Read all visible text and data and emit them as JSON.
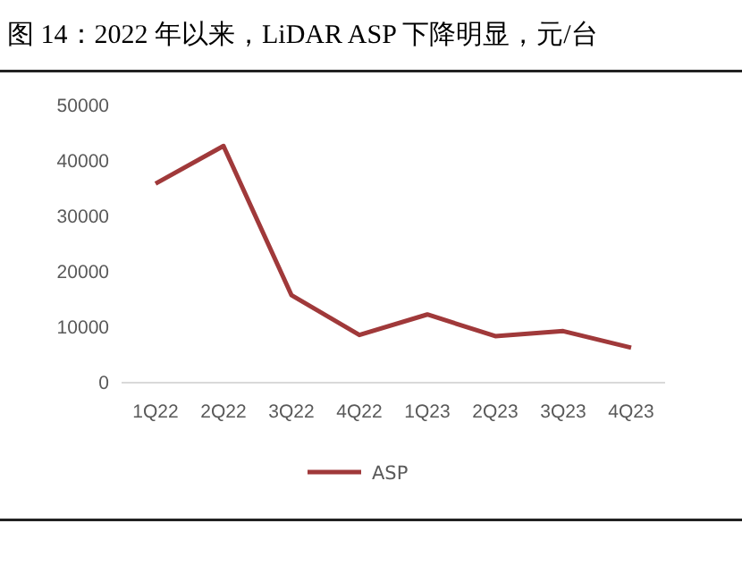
{
  "chart_data": {
    "type": "line",
    "title": "图 14：2022 年以来，LiDAR ASP 下降明显，元/台",
    "categories": [
      "1Q22",
      "2Q22",
      "3Q22",
      "4Q22",
      "1Q23",
      "2Q23",
      "3Q23",
      "4Q23"
    ],
    "series": [
      {
        "name": "ASP",
        "color": "#a0393a",
        "values": [
          35900,
          42700,
          15800,
          8600,
          12300,
          8400,
          9300,
          6300
        ]
      }
    ],
    "ylim": [
      0,
      50000
    ],
    "yticks": [
      0,
      10000,
      20000,
      30000,
      40000,
      50000
    ],
    "grid": false,
    "legend": "bottom",
    "marker": "none",
    "line_style": "solid"
  }
}
